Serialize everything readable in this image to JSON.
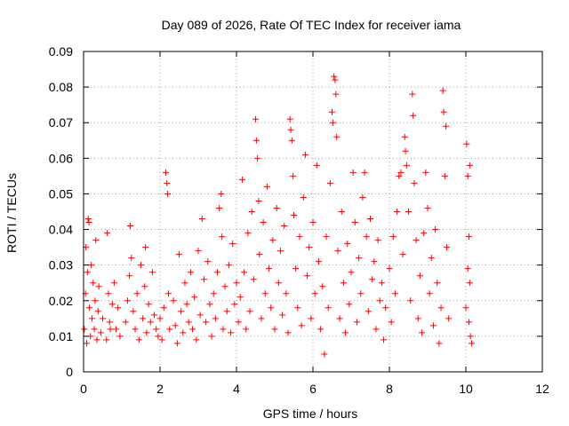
{
  "chart_data": {
    "type": "scatter",
    "title": "Day 089 of 2026, Rate Of TEC Index for receiver iama",
    "xlabel": "GPS time / hours",
    "ylabel": "ROTI / TECUs",
    "xlim": [
      0,
      12
    ],
    "ylim": [
      0,
      0.09
    ],
    "xticks": [
      0,
      2,
      4,
      6,
      8,
      10,
      12
    ],
    "xtick_labels": [
      "0",
      "2",
      "4",
      "6",
      "8",
      "10",
      "12"
    ],
    "yticks": [
      0,
      0.01,
      0.02,
      0.03,
      0.04,
      0.05,
      0.06,
      0.07,
      0.08,
      0.09
    ],
    "ytick_labels": [
      "0",
      "0.01",
      "0.02",
      "0.03",
      "0.04",
      "0.05",
      "0.06",
      "0.07",
      "0.08",
      "0.09"
    ],
    "grid": true,
    "marker": "+",
    "color": "#ff0000",
    "series": [
      {
        "name": "ROTI",
        "points": [
          [
            0.02,
            0.012
          ],
          [
            0.05,
            0.022
          ],
          [
            0.06,
            0.035
          ],
          [
            0.08,
            0.008
          ],
          [
            0.1,
            0.028
          ],
          [
            0.12,
            0.043
          ],
          [
            0.14,
            0.042
          ],
          [
            0.15,
            0.018
          ],
          [
            0.18,
            0.01
          ],
          [
            0.2,
            0.03
          ],
          [
            0.22,
            0.015
          ],
          [
            0.25,
            0.025
          ],
          [
            0.28,
            0.012
          ],
          [
            0.3,
            0.02
          ],
          [
            0.32,
            0.037
          ],
          [
            0.35,
            0.009
          ],
          [
            0.38,
            0.017
          ],
          [
            0.4,
            0.024
          ],
          [
            0.45,
            0.011
          ],
          [
            0.5,
            0.015
          ],
          [
            0.6,
            0.009
          ],
          [
            0.62,
            0.039
          ],
          [
            0.65,
            0.022
          ],
          [
            0.68,
            0.014
          ],
          [
            0.7,
            0.012
          ],
          [
            0.75,
            0.019
          ],
          [
            0.8,
            0.025
          ],
          [
            0.85,
            0.012
          ],
          [
            0.9,
            0.018
          ],
          [
            0.95,
            0.01
          ],
          [
            1.1,
            0.014
          ],
          [
            1.15,
            0.02
          ],
          [
            1.2,
            0.027
          ],
          [
            1.22,
            0.041
          ],
          [
            1.25,
            0.032
          ],
          [
            1.3,
            0.017
          ],
          [
            1.35,
            0.012
          ],
          [
            1.4,
            0.022
          ],
          [
            1.45,
            0.009
          ],
          [
            1.5,
            0.03
          ],
          [
            1.55,
            0.015
          ],
          [
            1.6,
            0.024
          ],
          [
            1.62,
            0.035
          ],
          [
            1.65,
            0.011
          ],
          [
            1.7,
            0.019
          ],
          [
            1.75,
            0.014
          ],
          [
            1.8,
            0.028
          ],
          [
            1.85,
            0.016
          ],
          [
            1.9,
            0.012
          ],
          [
            1.95,
            0.01
          ],
          [
            2.0,
            0.015
          ],
          [
            2.05,
            0.009
          ],
          [
            2.1,
            0.018
          ],
          [
            2.15,
            0.056
          ],
          [
            2.18,
            0.053
          ],
          [
            2.2,
            0.05
          ],
          [
            2.22,
            0.022
          ],
          [
            2.25,
            0.012
          ],
          [
            2.35,
            0.02
          ],
          [
            2.4,
            0.013
          ],
          [
            2.45,
            0.008
          ],
          [
            2.5,
            0.033
          ],
          [
            2.55,
            0.017
          ],
          [
            2.6,
            0.011
          ],
          [
            2.65,
            0.025
          ],
          [
            2.7,
            0.019
          ],
          [
            2.75,
            0.014
          ],
          [
            2.8,
            0.028
          ],
          [
            2.85,
            0.012
          ],
          [
            2.9,
            0.021
          ],
          [
            2.95,
            0.009
          ],
          [
            3.0,
            0.034
          ],
          [
            3.05,
            0.016
          ],
          [
            3.1,
            0.043
          ],
          [
            3.15,
            0.026
          ],
          [
            3.2,
            0.014
          ],
          [
            3.25,
            0.031
          ],
          [
            3.3,
            0.019
          ],
          [
            3.35,
            0.01
          ],
          [
            3.4,
            0.022
          ],
          [
            3.45,
            0.015
          ],
          [
            3.5,
            0.028
          ],
          [
            3.55,
            0.046
          ],
          [
            3.6,
            0.05
          ],
          [
            3.62,
            0.038
          ],
          [
            3.65,
            0.012
          ],
          [
            3.7,
            0.024
          ],
          [
            3.75,
            0.017
          ],
          [
            3.8,
            0.03
          ],
          [
            3.85,
            0.011
          ],
          [
            3.9,
            0.036
          ],
          [
            3.95,
            0.019
          ],
          [
            4.0,
            0.025
          ],
          [
            4.05,
            0.014
          ],
          [
            4.1,
            0.021
          ],
          [
            4.15,
            0.054
          ],
          [
            4.2,
            0.028
          ],
          [
            4.25,
            0.012
          ],
          [
            4.3,
            0.039
          ],
          [
            4.35,
            0.017
          ],
          [
            4.4,
            0.045
          ],
          [
            4.45,
            0.026
          ],
          [
            4.5,
            0.071
          ],
          [
            4.52,
            0.065
          ],
          [
            4.55,
            0.06
          ],
          [
            4.58,
            0.048
          ],
          [
            4.6,
            0.033
          ],
          [
            4.65,
            0.015
          ],
          [
            4.7,
            0.042
          ],
          [
            4.75,
            0.022
          ],
          [
            4.8,
            0.052
          ],
          [
            4.85,
            0.029
          ],
          [
            4.9,
            0.018
          ],
          [
            4.95,
            0.037
          ],
          [
            5.0,
            0.012
          ],
          [
            5.05,
            0.046
          ],
          [
            5.1,
            0.025
          ],
          [
            5.15,
            0.034
          ],
          [
            5.2,
            0.016
          ],
          [
            5.25,
            0.041
          ],
          [
            5.3,
            0.022
          ],
          [
            5.35,
            0.011
          ],
          [
            5.4,
            0.071
          ],
          [
            5.42,
            0.068
          ],
          [
            5.45,
            0.065
          ],
          [
            5.48,
            0.055
          ],
          [
            5.5,
            0.044
          ],
          [
            5.55,
            0.029
          ],
          [
            5.6,
            0.018
          ],
          [
            5.65,
            0.038
          ],
          [
            5.7,
            0.013
          ],
          [
            5.75,
            0.049
          ],
          [
            5.8,
            0.061
          ],
          [
            5.85,
            0.027
          ],
          [
            5.9,
            0.035
          ],
          [
            5.95,
            0.015
          ],
          [
            6.0,
            0.042
          ],
          [
            6.05,
            0.022
          ],
          [
            6.1,
            0.058
          ],
          [
            6.15,
            0.031
          ],
          [
            6.2,
            0.012
          ],
          [
            6.25,
            0.024
          ],
          [
            6.3,
            0.005
          ],
          [
            6.35,
            0.038
          ],
          [
            6.4,
            0.018
          ],
          [
            6.45,
            0.053
          ],
          [
            6.5,
            0.073
          ],
          [
            6.52,
            0.07
          ],
          [
            6.55,
            0.083
          ],
          [
            6.58,
            0.082
          ],
          [
            6.6,
            0.078
          ],
          [
            6.62,
            0.066
          ],
          [
            6.65,
            0.034
          ],
          [
            6.7,
            0.015
          ],
          [
            6.75,
            0.045
          ],
          [
            6.8,
            0.025
          ],
          [
            6.85,
            0.011
          ],
          [
            6.9,
            0.036
          ],
          [
            6.95,
            0.019
          ],
          [
            7.0,
            0.028
          ],
          [
            7.05,
            0.056
          ],
          [
            7.1,
            0.042
          ],
          [
            7.15,
            0.014
          ],
          [
            7.2,
            0.032
          ],
          [
            7.25,
            0.022
          ],
          [
            7.3,
            0.049
          ],
          [
            7.35,
            0.056
          ],
          [
            7.4,
            0.038
          ],
          [
            7.45,
            0.017
          ],
          [
            7.5,
            0.043
          ],
          [
            7.55,
            0.026
          ],
          [
            7.6,
            0.031
          ],
          [
            7.65,
            0.012
          ],
          [
            7.7,
            0.037
          ],
          [
            7.75,
            0.02
          ],
          [
            7.8,
            0.025
          ],
          [
            7.85,
            0.009
          ],
          [
            7.9,
            0.018
          ],
          [
            8.0,
            0.029
          ],
          [
            8.05,
            0.014
          ],
          [
            8.1,
            0.038
          ],
          [
            8.15,
            0.022
          ],
          [
            8.2,
            0.045
          ],
          [
            8.25,
            0.055
          ],
          [
            8.3,
            0.056
          ],
          [
            8.35,
            0.033
          ],
          [
            8.4,
            0.066
          ],
          [
            8.42,
            0.062
          ],
          [
            8.45,
            0.058
          ],
          [
            8.5,
            0.045
          ],
          [
            8.55,
            0.02
          ],
          [
            8.6,
            0.078
          ],
          [
            8.62,
            0.072
          ],
          [
            8.65,
            0.053
          ],
          [
            8.7,
            0.037
          ],
          [
            8.75,
            0.015
          ],
          [
            8.8,
            0.027
          ],
          [
            8.85,
            0.011
          ],
          [
            8.9,
            0.039
          ],
          [
            8.95,
            0.056
          ],
          [
            9.0,
            0.046
          ],
          [
            9.05,
            0.022
          ],
          [
            9.1,
            0.032
          ],
          [
            9.15,
            0.013
          ],
          [
            9.2,
            0.04
          ],
          [
            9.25,
            0.025
          ],
          [
            9.3,
            0.008
          ],
          [
            9.35,
            0.018
          ],
          [
            9.4,
            0.079
          ],
          [
            9.42,
            0.073
          ],
          [
            9.45,
            0.055
          ],
          [
            9.48,
            0.069
          ],
          [
            9.5,
            0.035
          ],
          [
            9.55,
            0.015
          ],
          [
            10.0,
            0.018
          ],
          [
            10.02,
            0.064
          ],
          [
            10.05,
            0.055
          ],
          [
            10.08,
            0.038
          ],
          [
            10.1,
            0.025
          ],
          [
            10.12,
            0.01
          ],
          [
            10.15,
            0.008
          ],
          [
            10.1,
            0.058
          ],
          [
            10.05,
            0.029
          ],
          [
            10.08,
            0.014
          ]
        ]
      }
    ]
  }
}
